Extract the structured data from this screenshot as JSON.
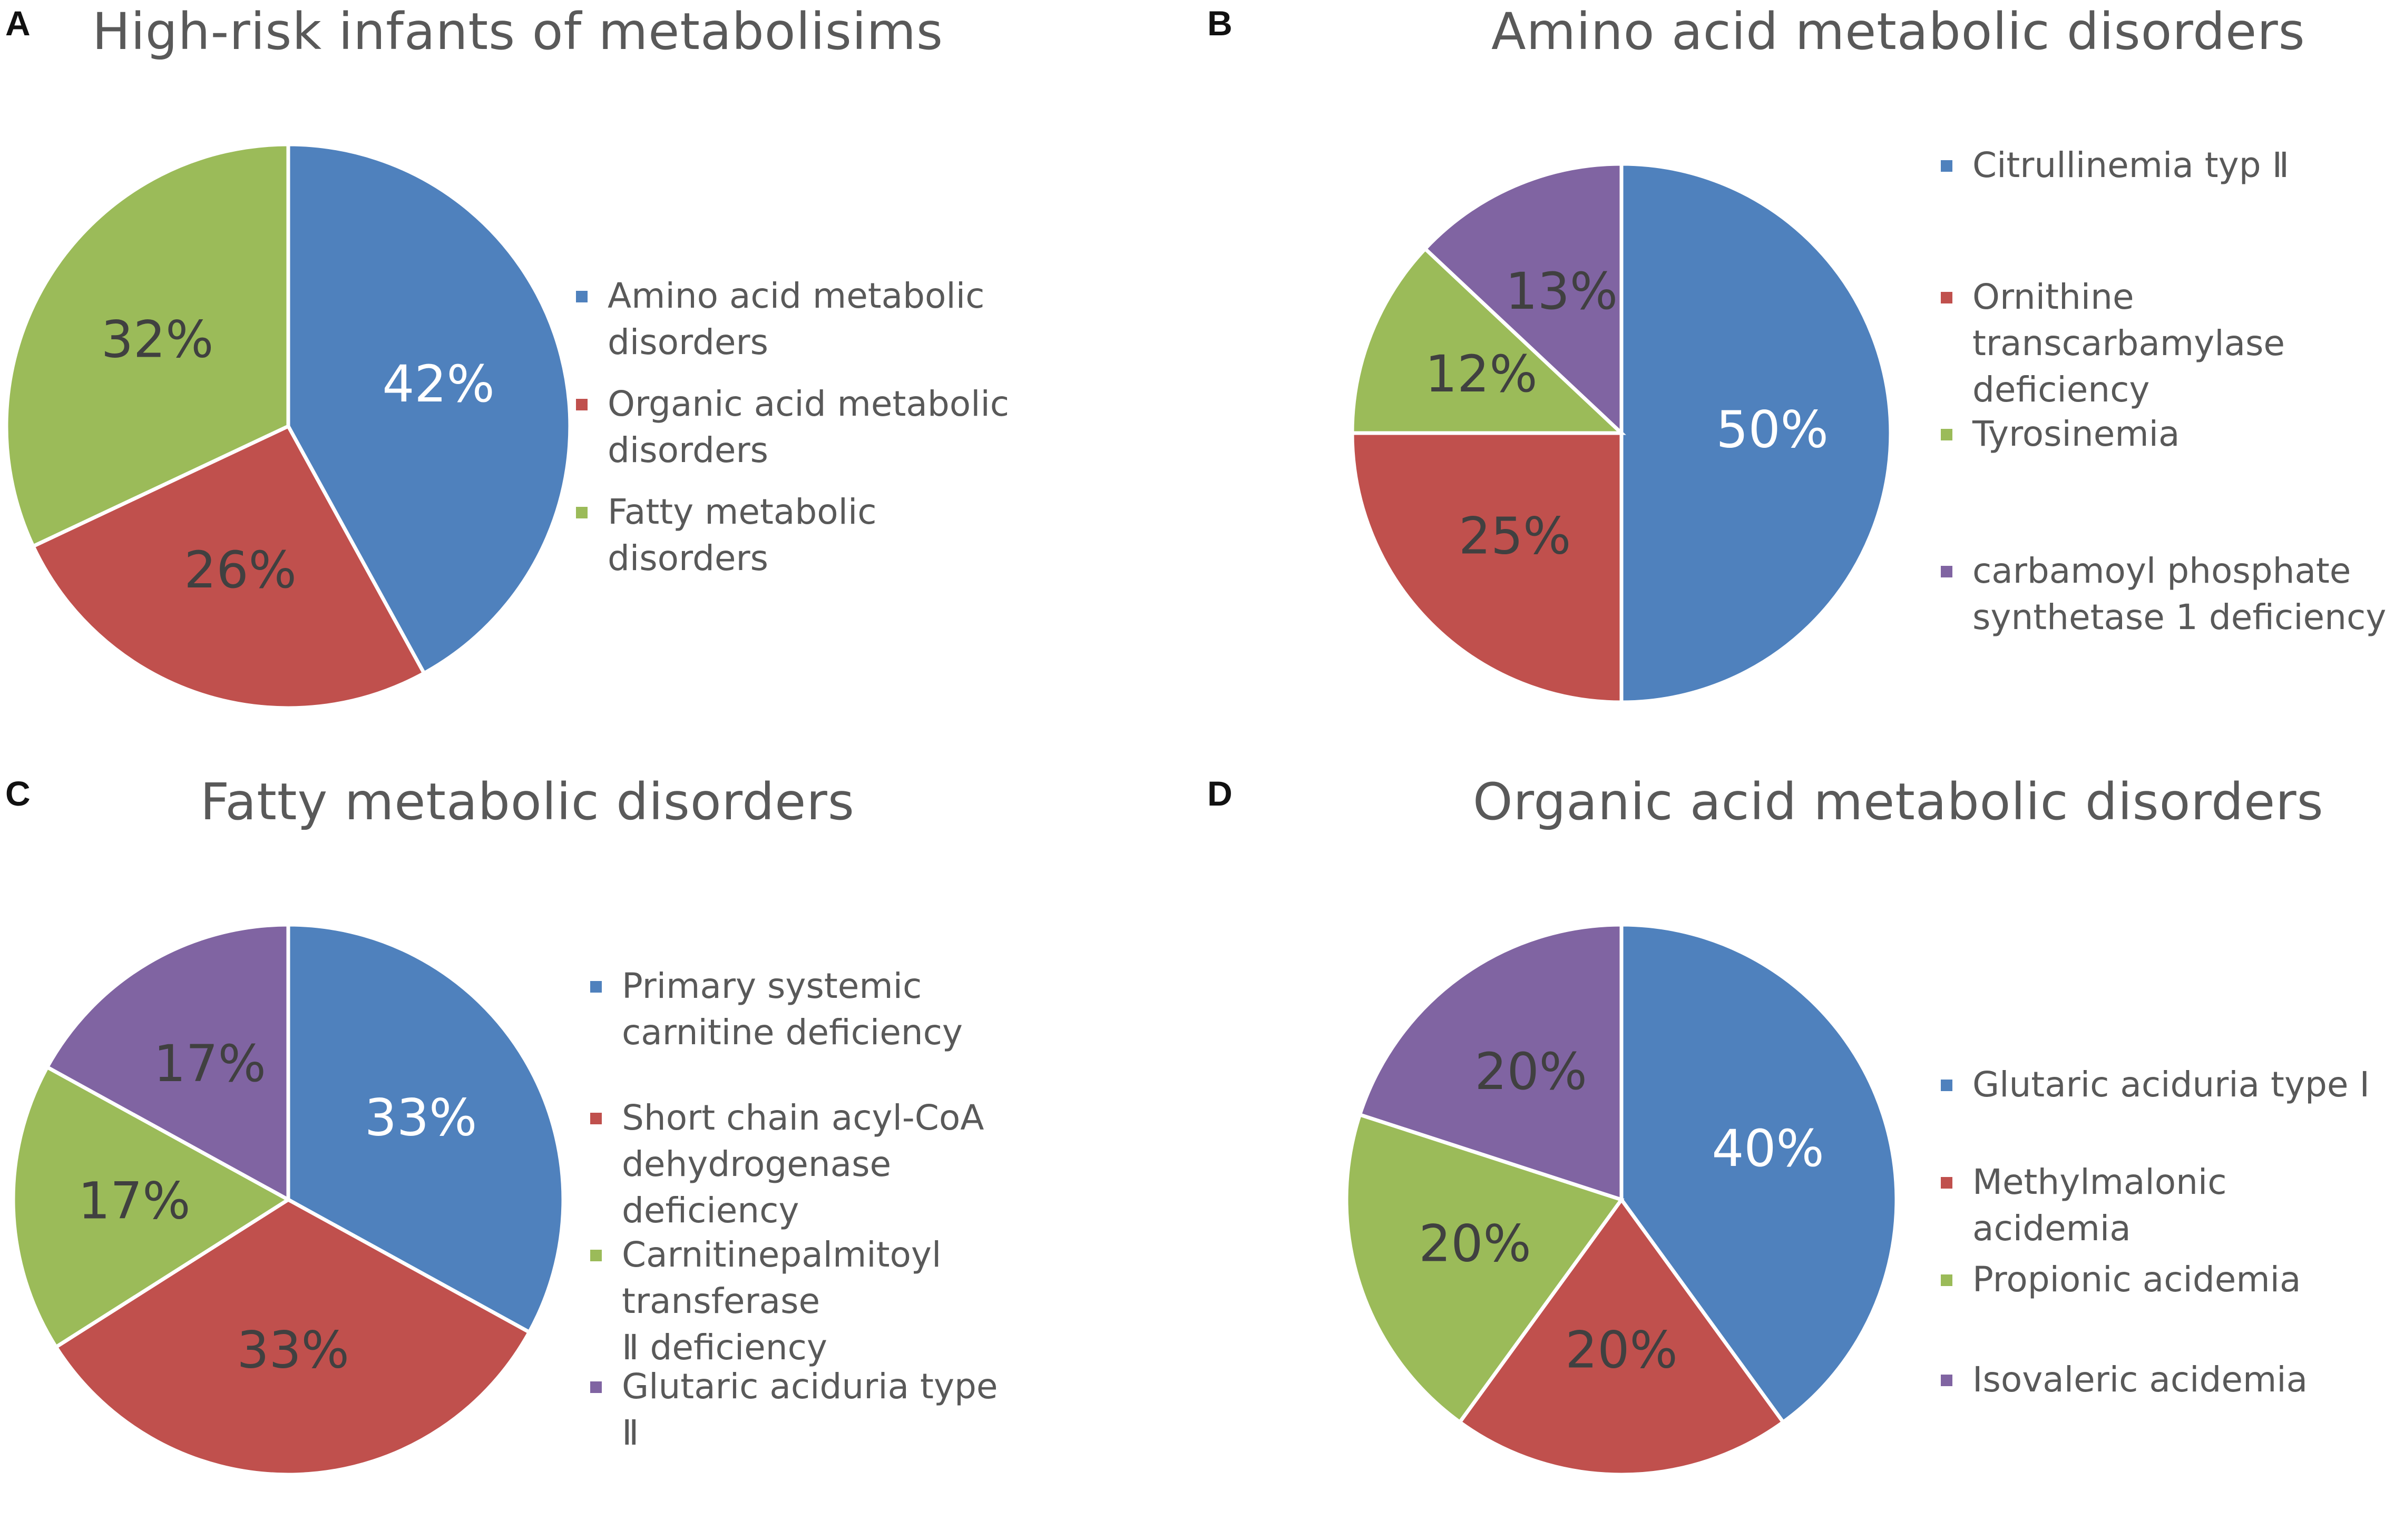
{
  "colors": {
    "blue": "#4f81bd",
    "red": "#c0504d",
    "green": "#9bbb59",
    "purple": "#8064a2",
    "text": "#595959"
  },
  "chart_data": [
    {
      "type": "pie",
      "panel": "A",
      "title": "High-risk infants of metabolisims",
      "categories": [
        "Amino acid metabolic disorders",
        "Organic acid metabolic disorders",
        "Fatty metabolic disorders"
      ],
      "values": [
        42,
        26,
        32
      ],
      "labels": [
        "42%",
        "26%",
        "32%"
      ],
      "colors": [
        "#4f81bd",
        "#c0504d",
        "#9bbb59"
      ],
      "legend_lines": [
        [
          "Amino acid metabolic",
          "disorders"
        ],
        [
          "Organic acid metabolic",
          "disorders"
        ],
        [
          "Fatty metabolic",
          "disorders"
        ]
      ]
    },
    {
      "type": "pie",
      "panel": "B",
      "title": "Amino acid metabolic disorders",
      "categories": [
        "Citrullinemia typ II",
        "Ornithine transcarbamylase deficiency",
        "Tyrosinemia",
        "carbamoyl phosphate synthetase 1 deficiency"
      ],
      "values": [
        50,
        25,
        12,
        13
      ],
      "labels": [
        "50%",
        "25%",
        "12%",
        "13%"
      ],
      "colors": [
        "#4f81bd",
        "#c0504d",
        "#9bbb59",
        "#8064a2"
      ],
      "legend_lines": [
        [
          "Citrullinemia typ Ⅱ"
        ],
        [
          "Ornithine",
          "transcarbamylase",
          "deficiency"
        ],
        [
          "Tyrosinemia"
        ],
        [
          "carbamoyl phosphate",
          "synthetase 1 deficiency"
        ]
      ]
    },
    {
      "type": "pie",
      "panel": "C",
      "title": "Fatty metabolic disorders",
      "categories": [
        "Primary systemic carnitine deficiency",
        "Short chain acyl-CoA dehydrogenase deficiency",
        "Carnitinepalmitoyl transferase II deficiency",
        "Glutaric aciduria type II"
      ],
      "values": [
        33,
        33,
        17,
        17
      ],
      "labels": [
        "33%",
        "33%",
        "17%",
        "17%"
      ],
      "colors": [
        "#4f81bd",
        "#c0504d",
        "#9bbb59",
        "#8064a2"
      ],
      "legend_lines": [
        [
          "Primary systemic",
          "carnitine deficiency"
        ],
        [
          "Short chain acyl-CoA",
          "dehydrogenase",
          "deficiency"
        ],
        [
          "Carnitinepalmitoyl",
          "transferase",
          " Ⅱ deficiency"
        ],
        [
          "Glutaric aciduria type",
          "Ⅱ"
        ]
      ]
    },
    {
      "type": "pie",
      "panel": "D",
      "title": "Organic acid metabolic disorders",
      "categories": [
        "Glutaric aciduria type I",
        "Methylmalonic acidemia",
        "Propionic acidemia",
        "Isovaleric acidemia"
      ],
      "values": [
        40,
        20,
        20,
        20
      ],
      "labels": [
        "40%",
        "20%",
        "20%",
        "20%"
      ],
      "colors": [
        "#4f81bd",
        "#c0504d",
        "#9bbb59",
        "#8064a2"
      ],
      "legend_lines": [
        [
          "Glutaric aciduria type I"
        ],
        [
          "Methylmalonic",
          "acidemia"
        ],
        [
          "Propionic acidemia"
        ],
        [
          "Isovaleric acidemia"
        ]
      ]
    }
  ]
}
